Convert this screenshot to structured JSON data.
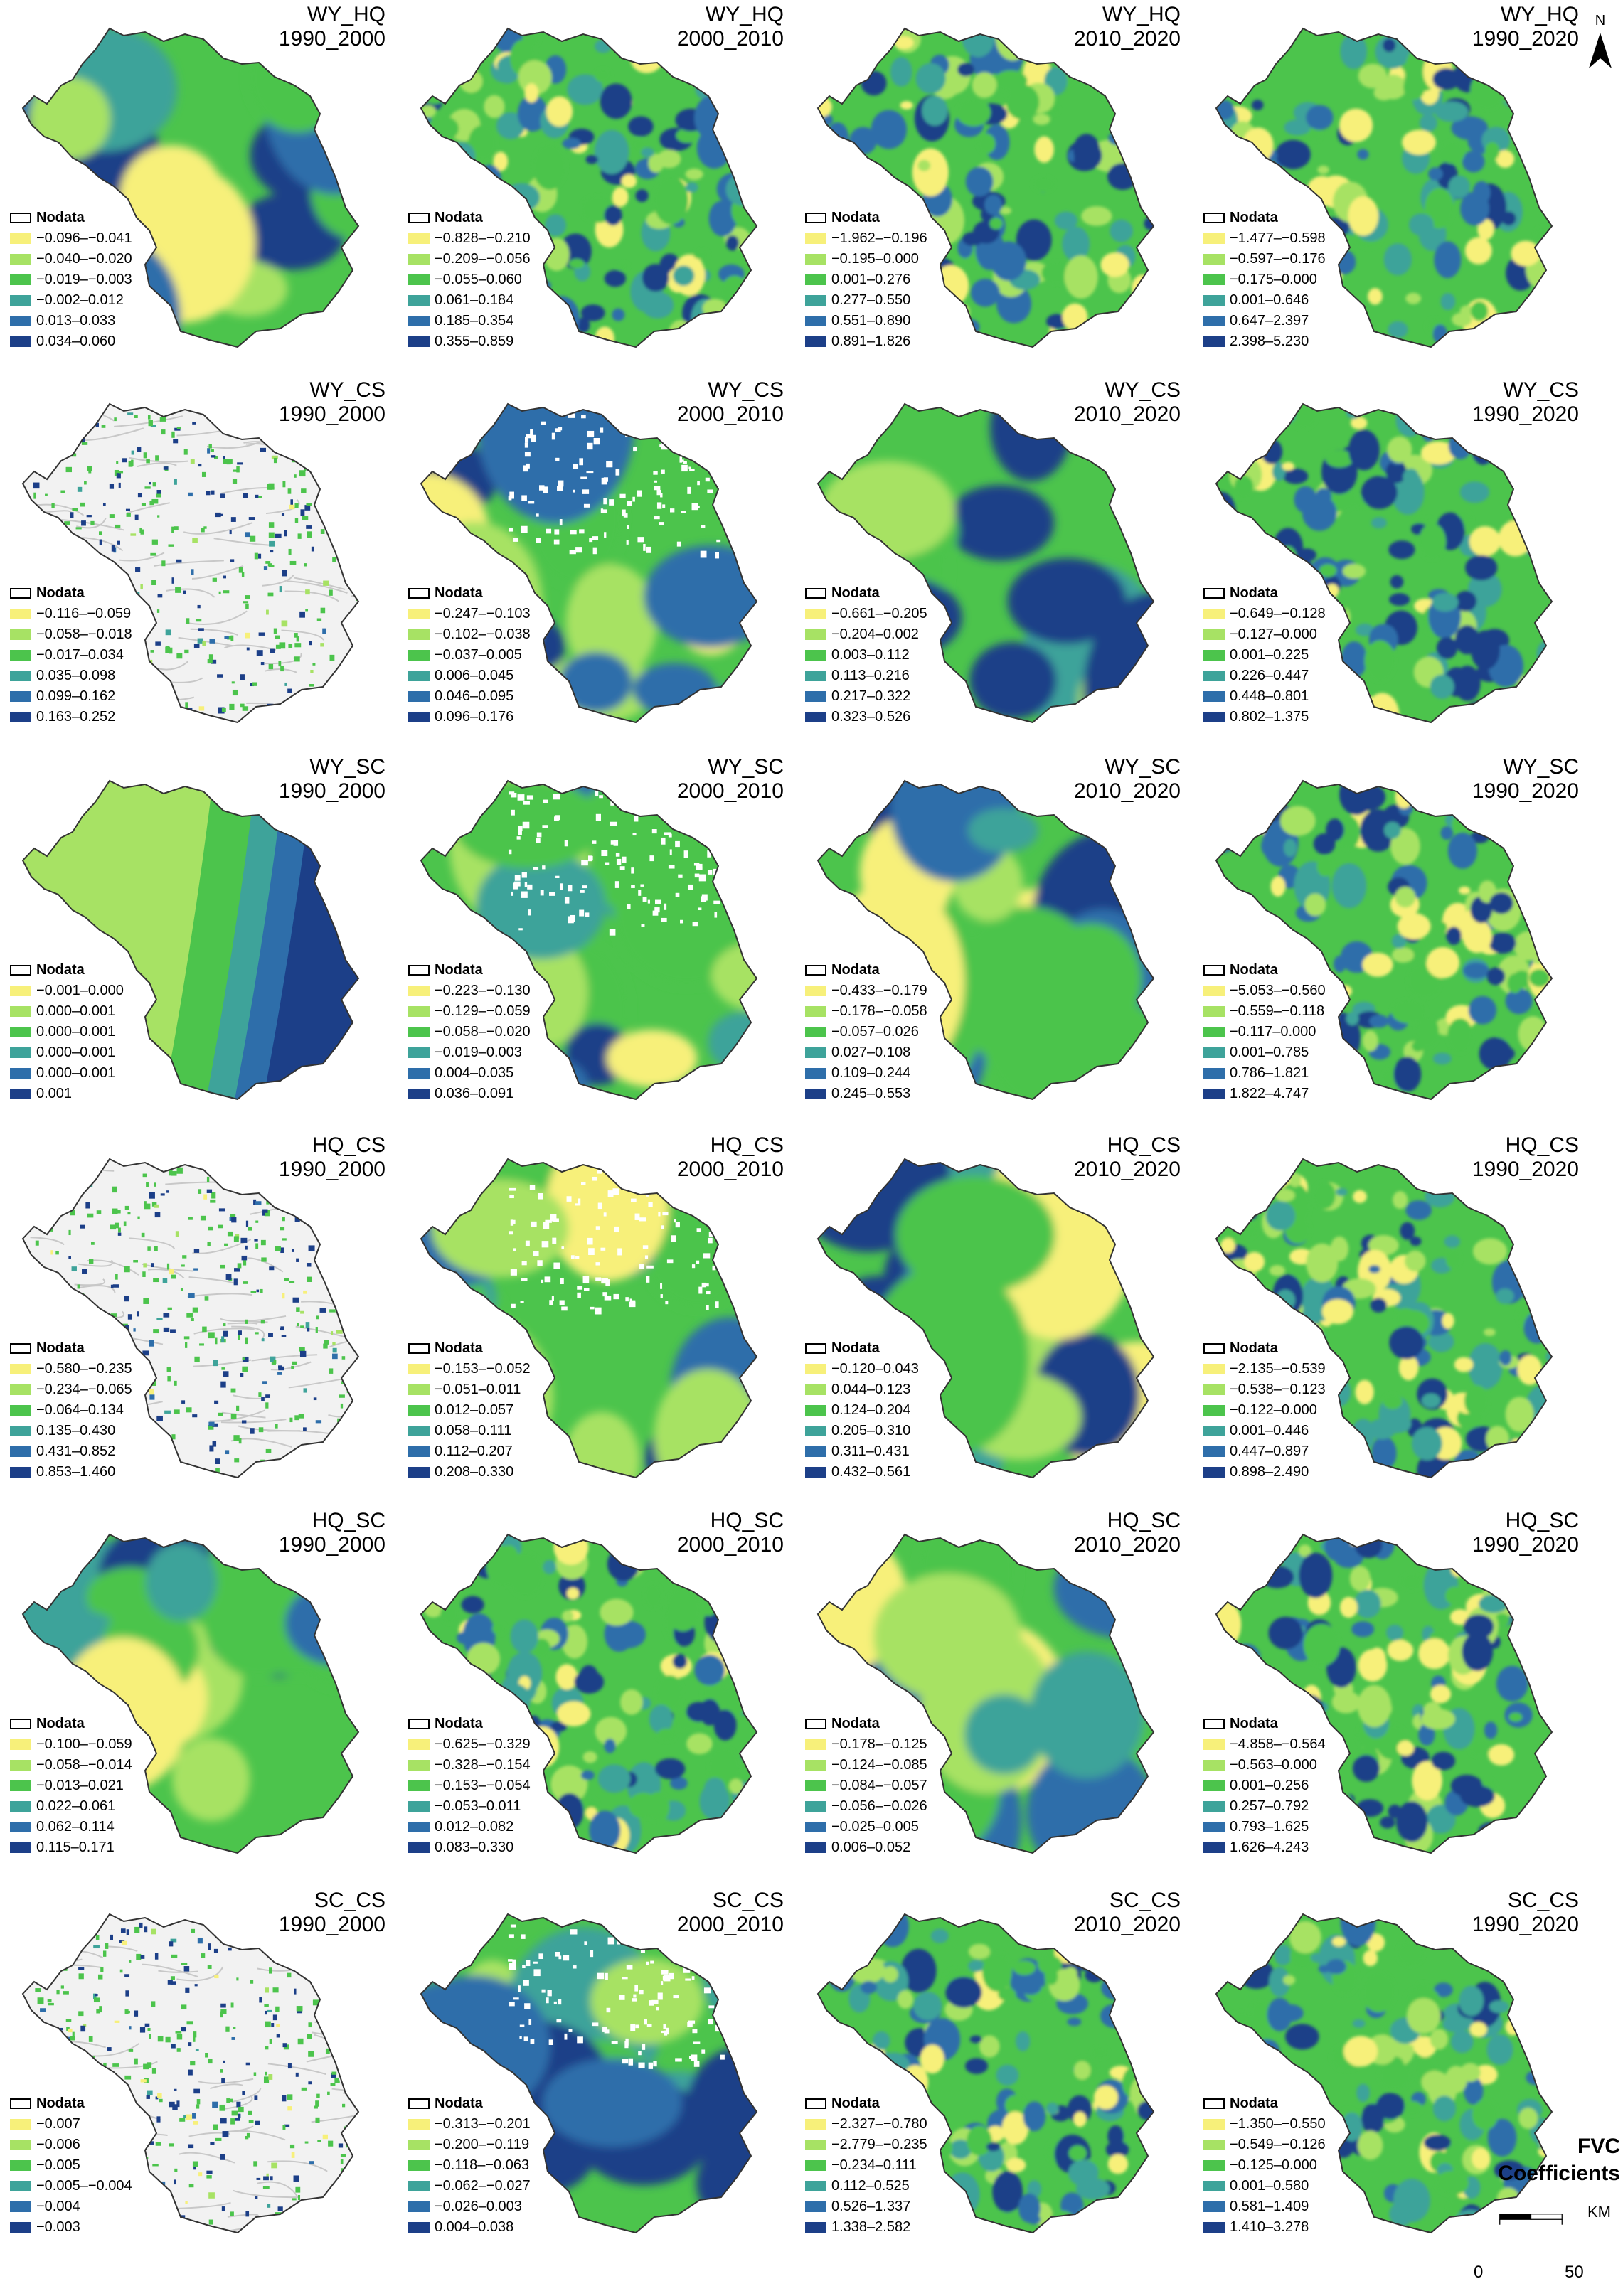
{
  "colors": {
    "class_1": "#f7f07a",
    "class_2": "#a7e264",
    "class_3": "#4cc44c",
    "class_4": "#3ea39a",
    "class_5": "#2e6eaa",
    "class_6": "#1c3f88",
    "nodata": "#ffffff",
    "outline": "#333333"
  },
  "north_arrow": {
    "label": "N",
    "icon": "north-arrow-icon"
  },
  "legend_nodata_label": "Nodata",
  "coefficients_title": [
    "FVC",
    "Coefficients"
  ],
  "scale_bar": {
    "unit": "KM",
    "start": "0",
    "end": "50"
  },
  "panels": [
    {
      "pair": "WY_HQ",
      "period": "1990_2000",
      "pattern": "smooth",
      "classes": [
        "−0.096–−0.041",
        "−0.040–−0.020",
        "−0.019–−0.003",
        "−0.002–0.012",
        "0.013–0.033",
        "0.034–0.060"
      ]
    },
    {
      "pair": "WY_HQ",
      "period": "2000_2010",
      "pattern": "patchy",
      "classes": [
        "−0.828–−0.210",
        "−0.209–−0.056",
        "−0.055–0.060",
        "0.061–0.184",
        "0.185–0.354",
        "0.355–0.859"
      ]
    },
    {
      "pair": "WY_HQ",
      "period": "2010_2020",
      "pattern": "patchy",
      "classes": [
        "−1.962–−0.196",
        "−0.195–0.000",
        "0.001–0.276",
        "0.277–0.550",
        "0.551–0.890",
        "0.891–1.826"
      ]
    },
    {
      "pair": "WY_HQ",
      "period": "1990_2020",
      "pattern": "patchy",
      "classes": [
        "−1.477–−0.598",
        "−0.597–−0.176",
        "−0.175–0.000",
        "0.001–0.646",
        "0.647–2.397",
        "2.398–5.230"
      ]
    },
    {
      "pair": "WY_CS",
      "period": "1990_2000",
      "pattern": "sparse",
      "classes": [
        "−0.116–−0.059",
        "−0.058–−0.018",
        "−0.017–0.034",
        "0.035–0.098",
        "0.099–0.162",
        "0.163–0.252"
      ]
    },
    {
      "pair": "WY_CS",
      "period": "2000_2010",
      "pattern": "smooth",
      "classes": [
        "−0.247–−0.103",
        "−0.102–−0.038",
        "−0.037–0.005",
        "0.006–0.045",
        "0.046–0.095",
        "0.096–0.176"
      ]
    },
    {
      "pair": "WY_CS",
      "period": "2010_2020",
      "pattern": "smooth",
      "classes": [
        "−0.661–−0.205",
        "−0.204–0.002",
        "0.003–0.112",
        "0.113–0.216",
        "0.217–0.322",
        "0.323–0.526"
      ]
    },
    {
      "pair": "WY_CS",
      "period": "1990_2020",
      "pattern": "patchy",
      "classes": [
        "−0.649–−0.128",
        "−0.127–0.000",
        "0.001–0.225",
        "0.226–0.447",
        "0.448–0.801",
        "0.802–1.375"
      ]
    },
    {
      "pair": "WY_SC",
      "period": "1990_2000",
      "pattern": "bands",
      "classes": [
        "−0.001–0.000",
        "0.000–0.001",
        "0.000–0.001",
        "0.000–0.001",
        "0.000–0.001",
        "0.001"
      ]
    },
    {
      "pair": "WY_SC",
      "period": "2000_2010",
      "pattern": "smooth",
      "classes": [
        "−0.223–−0.130",
        "−0.129–−0.059",
        "−0.058–−0.020",
        "−0.019–0.003",
        "0.004–0.035",
        "0.036–0.091"
      ]
    },
    {
      "pair": "WY_SC",
      "period": "2010_2020",
      "pattern": "smooth",
      "classes": [
        "−0.433–−0.179",
        "−0.178–−0.058",
        "−0.057–0.026",
        "0.027–0.108",
        "0.109–0.244",
        "0.245–0.553"
      ]
    },
    {
      "pair": "WY_SC",
      "period": "1990_2020",
      "pattern": "patchy",
      "classes": [
        "−5.053–−0.560",
        "−0.559–−0.118",
        "−0.117–0.000",
        "0.001–0.785",
        "0.786–1.821",
        "1.822–4.747"
      ]
    },
    {
      "pair": "HQ_CS",
      "period": "1990_2000",
      "pattern": "sparse",
      "classes": [
        "−0.580–−0.235",
        "−0.234–−0.065",
        "−0.064–0.134",
        "0.135–0.430",
        "0.431–0.852",
        "0.853–1.460"
      ]
    },
    {
      "pair": "HQ_CS",
      "period": "2000_2010",
      "pattern": "smooth",
      "classes": [
        "−0.153–−0.052",
        "−0.051–0.011",
        "0.012–0.057",
        "0.058–0.111",
        "0.112–0.207",
        "0.208–0.330"
      ]
    },
    {
      "pair": "HQ_CS",
      "period": "2010_2020",
      "pattern": "smooth",
      "classes": [
        "−0.120–0.043",
        "0.044–0.123",
        "0.124–0.204",
        "0.205–0.310",
        "0.311–0.431",
        "0.432–0.561"
      ]
    },
    {
      "pair": "HQ_CS",
      "period": "1990_2020",
      "pattern": "patchy",
      "classes": [
        "−2.135–−0.539",
        "−0.538–−0.123",
        "−0.122–0.000",
        "0.001–0.446",
        "0.447–0.897",
        "0.898–2.490"
      ]
    },
    {
      "pair": "HQ_SC",
      "period": "1990_2000",
      "pattern": "smooth",
      "classes": [
        "−0.100–−0.059",
        "−0.058–−0.014",
        "−0.013–0.021",
        "0.022–0.061",
        "0.062–0.114",
        "0.115–0.171"
      ]
    },
    {
      "pair": "HQ_SC",
      "period": "2000_2010",
      "pattern": "patchy",
      "classes": [
        "−0.625–−0.329",
        "−0.328–−0.154",
        "−0.153–−0.054",
        "−0.053–0.011",
        "0.012–0.082",
        "0.083–0.330"
      ]
    },
    {
      "pair": "HQ_SC",
      "period": "2010_2020",
      "pattern": "smooth",
      "classes": [
        "−0.178–−0.125",
        "−0.124–−0.085",
        "−0.084–−0.057",
        "−0.056–−0.026",
        "−0.025–0.005",
        "0.006–0.052"
      ]
    },
    {
      "pair": "HQ_SC",
      "period": "1990_2020",
      "pattern": "patchy",
      "classes": [
        "−4.858–−0.564",
        "−0.563–0.000",
        "0.001–0.256",
        "0.257–0.792",
        "0.793–1.625",
        "1.626–4.243"
      ]
    },
    {
      "pair": "SC_CS",
      "period": "1990_2000",
      "pattern": "sparse",
      "classes": [
        "−0.007",
        "−0.006",
        "−0.005",
        "−0.005–−0.004",
        "−0.004",
        "−0.003"
      ]
    },
    {
      "pair": "SC_CS",
      "period": "2000_2010",
      "pattern": "smooth",
      "classes": [
        "−0.313–−0.201",
        "−0.200–−0.119",
        "−0.118–−0.063",
        "−0.062–−0.027",
        "−0.026–0.003",
        "0.004–0.038"
      ]
    },
    {
      "pair": "SC_CS",
      "period": "2010_2020",
      "pattern": "patchy",
      "classes": [
        "−2.327–−0.780",
        "−2.779–−0.235",
        "−0.234–0.111",
        "0.112–0.525",
        "0.526–1.337",
        "1.338–2.582"
      ]
    },
    {
      "pair": "SC_CS",
      "period": "1990_2020",
      "pattern": "patchy",
      "classes": [
        "−1.350–−0.550",
        "−0.549–−0.126",
        "−0.125–0.000",
        "0.001–0.580",
        "0.581–1.409",
        "1.410–3.278"
      ]
    }
  ]
}
